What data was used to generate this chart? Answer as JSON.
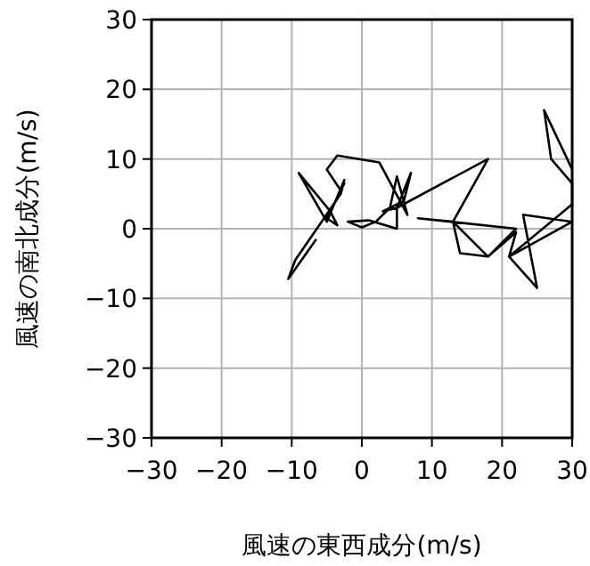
{
  "chart_data": {
    "type": "line",
    "xlabel": "風速の東西成分(m/s)",
    "ylabel": "風速の南北成分(m/s)",
    "xlim": [
      -30,
      30
    ],
    "ylim": [
      -30,
      30
    ],
    "xticks": [
      -30,
      -20,
      -10,
      0,
      10,
      20,
      30
    ],
    "yticks": [
      -30,
      -20,
      -10,
      0,
      10,
      20,
      30
    ],
    "grid": true,
    "marker": "none",
    "line_style": "solid",
    "series": [
      {
        "color": "#000000",
        "x": [
          -6.5,
          -10.5,
          -9.5,
          -3,
          -2.5,
          -5,
          -9,
          -4.5,
          -3.5,
          -5,
          -2.5,
          -3,
          -5,
          -3.5,
          2.5,
          6.5,
          5,
          4,
          2,
          0,
          -2,
          1,
          5,
          5,
          3,
          6,
          7,
          5,
          18,
          13,
          8,
          22,
          18,
          14,
          13,
          18,
          22,
          21,
          25,
          23,
          30,
          21,
          30,
          30,
          27,
          26,
          30
        ],
        "values": [
          -1.5,
          -7.2,
          -4.5,
          5,
          7,
          1,
          8,
          2.5,
          0.5,
          1.5,
          6.5,
          5.5,
          8.5,
          10.5,
          9.5,
          2,
          7.5,
          3,
          1,
          0.2,
          1,
          1.2,
          0,
          3,
          2.5,
          4,
          8,
          3,
          10,
          1,
          1.5,
          0,
          -4,
          -3.5,
          1,
          -4,
          -0.5,
          -4,
          -8.5,
          2,
          1,
          -4,
          3.5,
          6.5,
          10,
          17,
          8.5
        ]
      }
    ]
  }
}
